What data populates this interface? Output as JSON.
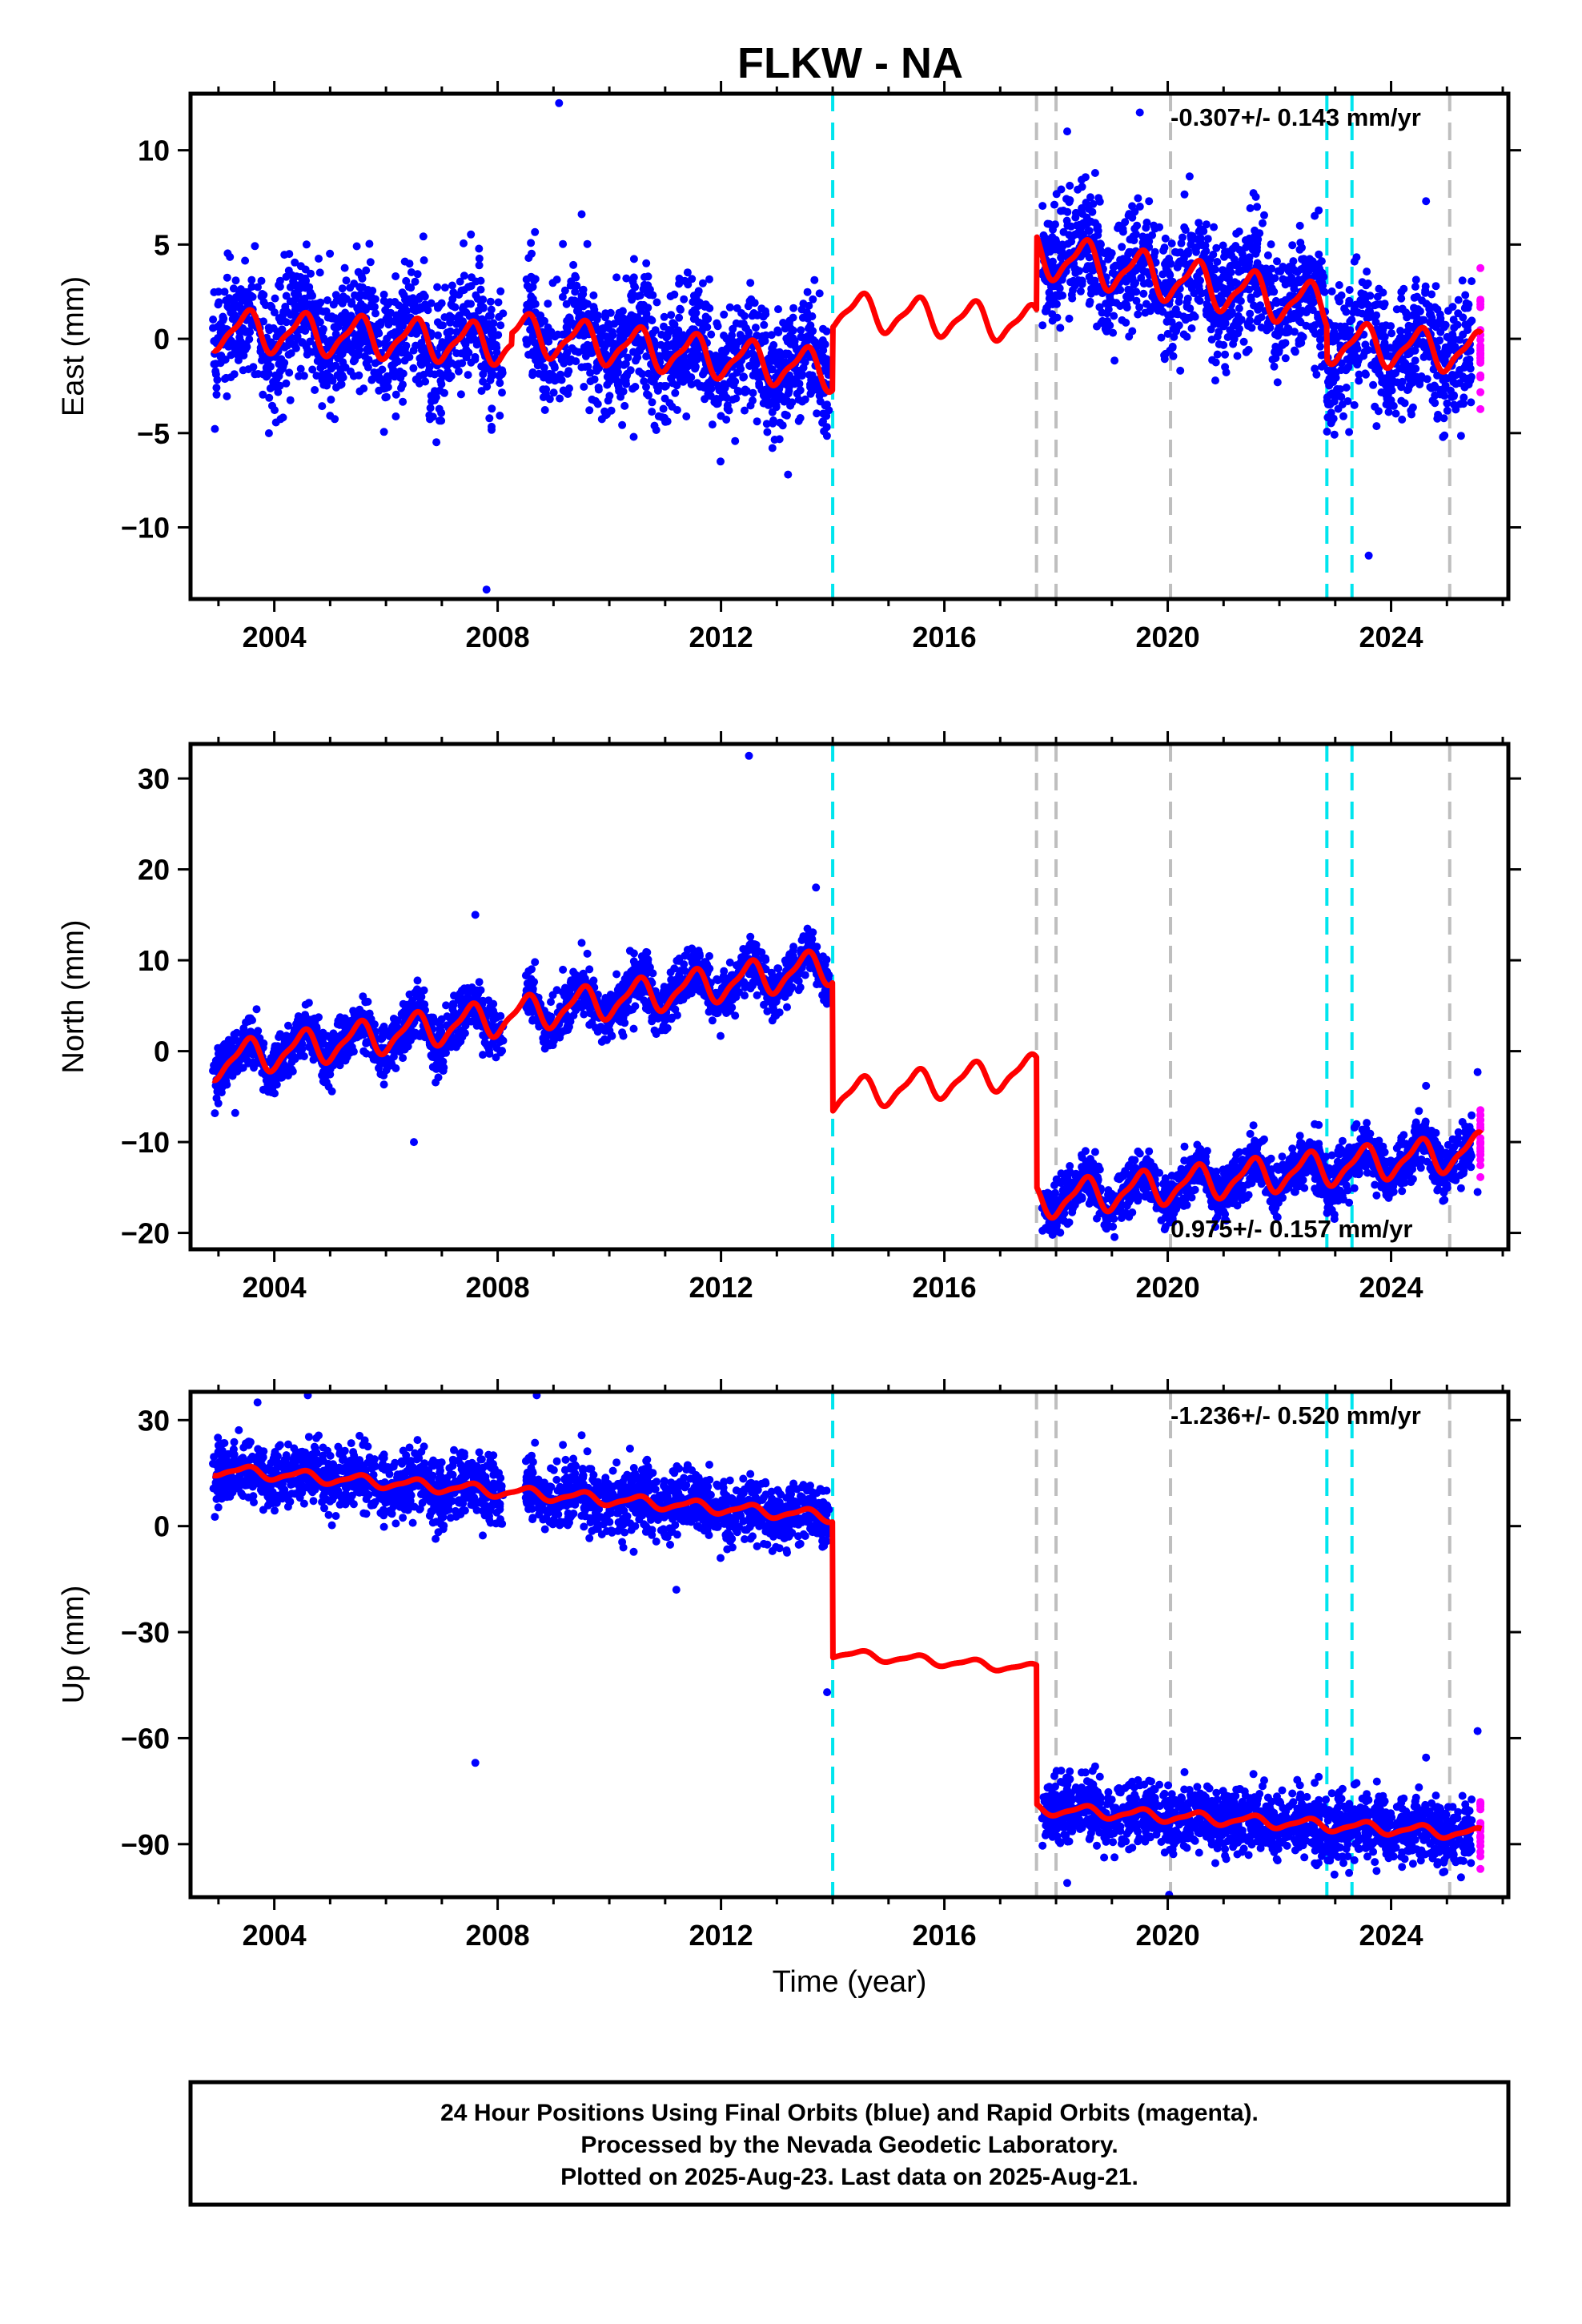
{
  "title": "FLKW - NA",
  "colors": {
    "final": "#0000ff",
    "rapid": "#ff00ff",
    "model": "#ff0000",
    "equipment_change": "#bebebe",
    "earthquake": "#00e5ee",
    "axes": "#000000"
  },
  "chart_data": [
    {
      "type": "scatter",
      "component": "east",
      "ylabel": "East (mm)",
      "xlabel": "",
      "xlim": [
        2002.5,
        2026.1
      ],
      "ylim": [
        -13.8,
        13.0
      ],
      "yticks": [
        10,
        5,
        0,
        -5,
        -10
      ],
      "xticks": [
        2004,
        2008,
        2012,
        2016,
        2020,
        2024
      ],
      "rate_text": "-0.307+/- 0.143 mm/yr",
      "rate_position": "top-right",
      "data_spans_final": [
        [
          2002.9,
          2008.1
        ],
        [
          2008.5,
          2013.95
        ],
        [
          2017.75,
          2025.45
        ]
      ],
      "data_span_rapid": [
        2025.45,
        2025.62
      ],
      "scatter_spread": 1.6,
      "model": {
        "pieces": [
          {
            "x0": 2002.9,
            "x1": 2008.25,
            "start": 0.5,
            "slope": -0.15,
            "annual_amplitude": 1.0
          },
          {
            "x0": 2008.25,
            "x1": 2014.0,
            "start": 0.3,
            "slope": -0.35,
            "annual_amplitude": 1.0
          },
          {
            "x0": 2014.0,
            "x1": 2017.65,
            "start": 1.5,
            "slope": -0.2,
            "annual_amplitude": 0.9
          },
          {
            "x0": 2017.65,
            "x1": 2022.85,
            "start": 4.5,
            "slope": -0.55,
            "annual_amplitude": 1.1
          },
          {
            "x0": 2022.85,
            "x1": 2025.62,
            "start": -0.2,
            "slope": -0.2,
            "annual_amplitude": 1.0
          }
        ]
      },
      "outliers": [
        [
          2009.1,
          12.5
        ],
        [
          2018.2,
          11.0
        ],
        [
          2019.5,
          12.0
        ],
        [
          2007.8,
          -13.3
        ],
        [
          2023.6,
          -11.5
        ],
        [
          2021.6,
          7.0
        ],
        [
          2013.2,
          -7.2
        ]
      ]
    },
    {
      "type": "scatter",
      "component": "north",
      "ylabel": "North (mm)",
      "xlabel": "",
      "xlim": [
        2002.5,
        2026.1
      ],
      "ylim": [
        -21.8,
        33.8
      ],
      "yticks": [
        30,
        20,
        10,
        0,
        -10,
        -20
      ],
      "xticks": [
        2004,
        2008,
        2012,
        2016,
        2020,
        2024
      ],
      "rate_text": "0.975+/- 0.157 mm/yr",
      "rate_position": "bottom-right",
      "data_spans_final": [
        [
          2002.9,
          2008.1
        ],
        [
          2008.5,
          2013.95
        ],
        [
          2017.75,
          2025.45
        ]
      ],
      "data_span_rapid": [
        2025.45,
        2025.62
      ],
      "scatter_spread": 1.4,
      "model": {
        "pieces": [
          {
            "x0": 2002.9,
            "x1": 2014.0,
            "start": -1.2,
            "slope": 0.95,
            "annual_amplitude": 1.8
          },
          {
            "x0": 2014.0,
            "x1": 2017.65,
            "start": -5.0,
            "slope": 0.8,
            "annual_amplitude": 1.6
          },
          {
            "x0": 2017.65,
            "x1": 2025.62,
            "start": -16.5,
            "slope": 0.7,
            "annual_amplitude": 1.8
          }
        ]
      },
      "outliers": [
        [
          2012.5,
          32.5
        ],
        [
          2006.5,
          -10.0
        ],
        [
          2007.6,
          15.0
        ],
        [
          2013.7,
          18.0
        ],
        [
          2025.55,
          -15.5
        ],
        [
          2025.55,
          -2.3
        ],
        [
          2003.3,
          -6.8
        ]
      ]
    },
    {
      "type": "scatter",
      "component": "up",
      "ylabel": "Up (mm)",
      "xlabel": "Time (year)",
      "xlim": [
        2002.5,
        2026.1
      ],
      "ylim": [
        -105,
        38
      ],
      "yticks": [
        30,
        0,
        -30,
        -60,
        -90
      ],
      "xticks": [
        2004,
        2008,
        2012,
        2016,
        2020,
        2024
      ],
      "rate_text": "-1.236+/- 0.520 mm/yr",
      "rate_position": "top-right",
      "data_spans_final": [
        [
          2002.9,
          2008.1
        ],
        [
          2008.5,
          2013.95
        ],
        [
          2017.75,
          2025.45
        ]
      ],
      "data_span_rapid": [
        2025.45,
        2025.62
      ],
      "scatter_spread": 4.5,
      "model": {
        "pieces": [
          {
            "x0": 2002.9,
            "x1": 2014.0,
            "start": 16.0,
            "slope": -1.2,
            "annual_amplitude": 1.5
          },
          {
            "x0": 2014.0,
            "x1": 2017.65,
            "start": -36.0,
            "slope": -1.2,
            "annual_amplitude": 1.2
          },
          {
            "x0": 2017.65,
            "x1": 2025.62,
            "start": -80.0,
            "slope": -0.9,
            "annual_amplitude": 1.5
          }
        ]
      },
      "outliers": [
        [
          2007.6,
          -67.0
        ],
        [
          2008.7,
          37.0
        ],
        [
          2013.9,
          -47.0
        ],
        [
          2003.7,
          35.0
        ],
        [
          2004.6,
          37.0
        ],
        [
          2011.2,
          -18.0
        ],
        [
          2018.2,
          -101.0
        ],
        [
          2025.55,
          -58.0
        ]
      ]
    }
  ],
  "events": {
    "earthquake": [
      2014.0,
      2022.85,
      2023.3
    ],
    "equipment_change": [
      2017.65,
      2018.0,
      2020.05,
      2025.05
    ]
  },
  "footer": {
    "line1": "24 Hour Positions Using Final Orbits (blue) and Rapid Orbits (magenta).",
    "line2": "Processed by the Nevada Geodetic Laboratory.",
    "line3": "Plotted on 2025-Aug-23. Last data on 2025-Aug-21."
  }
}
